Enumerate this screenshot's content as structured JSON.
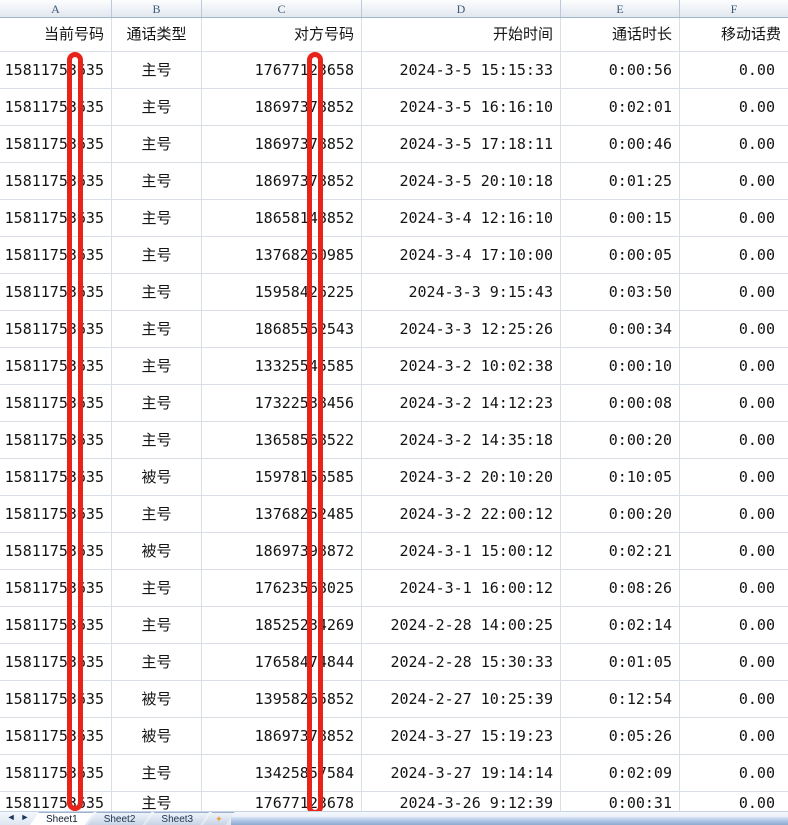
{
  "columns": {
    "letters": [
      "A",
      "B",
      "C",
      "D",
      "E",
      "F"
    ],
    "titles": [
      "当前号码",
      "通话类型",
      "对方号码",
      "开始时间",
      "通话时长",
      "移动话费"
    ]
  },
  "rows": [
    {
      "current_number": "15811753635",
      "call_type": "主号",
      "other_number": "17677123658",
      "start_time": "2024-3-5 15:15:33",
      "duration": "0:00:56",
      "fee": "0.00"
    },
    {
      "current_number": "15811753635",
      "call_type": "主号",
      "other_number": "18697378852",
      "start_time": "2024-3-5 16:16:10",
      "duration": "0:02:01",
      "fee": "0.00"
    },
    {
      "current_number": "15811753635",
      "call_type": "主号",
      "other_number": "18697378852",
      "start_time": "2024-3-5 17:18:11",
      "duration": "0:00:46",
      "fee": "0.00"
    },
    {
      "current_number": "15811753635",
      "call_type": "主号",
      "other_number": "18697378852",
      "start_time": "2024-3-5 20:10:18",
      "duration": "0:01:25",
      "fee": "0.00"
    },
    {
      "current_number": "15811753635",
      "call_type": "主号",
      "other_number": "18658148852",
      "start_time": "2024-3-4 12:16:10",
      "duration": "0:00:15",
      "fee": "0.00"
    },
    {
      "current_number": "15811753635",
      "call_type": "主号",
      "other_number": "13768260985",
      "start_time": "2024-3-4 17:10:00",
      "duration": "0:00:05",
      "fee": "0.00"
    },
    {
      "current_number": "15811753635",
      "call_type": "主号",
      "other_number": "15958426225",
      "start_time": "2024-3-3 9:15:43",
      "duration": "0:03:50",
      "fee": "0.00"
    },
    {
      "current_number": "15811753635",
      "call_type": "主号",
      "other_number": "18685562543",
      "start_time": "2024-3-3 12:25:26",
      "duration": "0:00:34",
      "fee": "0.00"
    },
    {
      "current_number": "15811753635",
      "call_type": "主号",
      "other_number": "13325545585",
      "start_time": "2024-3-2 10:02:38",
      "duration": "0:00:10",
      "fee": "0.00"
    },
    {
      "current_number": "15811753635",
      "call_type": "主号",
      "other_number": "17322538456",
      "start_time": "2024-3-2 14:12:23",
      "duration": "0:00:08",
      "fee": "0.00"
    },
    {
      "current_number": "15811753635",
      "call_type": "主号",
      "other_number": "13658568522",
      "start_time": "2024-3-2 14:35:18",
      "duration": "0:00:20",
      "fee": "0.00"
    },
    {
      "current_number": "15811753635",
      "call_type": "被号",
      "other_number": "15978156585",
      "start_time": "2024-3-2 20:10:20",
      "duration": "0:10:05",
      "fee": "0.00"
    },
    {
      "current_number": "15811753635",
      "call_type": "主号",
      "other_number": "13768252485",
      "start_time": "2024-3-2 22:00:12",
      "duration": "0:00:20",
      "fee": "0.00"
    },
    {
      "current_number": "15811753635",
      "call_type": "被号",
      "other_number": "18697398872",
      "start_time": "2024-3-1 15:00:12",
      "duration": "0:02:21",
      "fee": "0.00"
    },
    {
      "current_number": "15811753635",
      "call_type": "主号",
      "other_number": "17623568025",
      "start_time": "2024-3-1 16:00:12",
      "duration": "0:08:26",
      "fee": "0.00"
    },
    {
      "current_number": "15811753635",
      "call_type": "主号",
      "other_number": "18525234269",
      "start_time": "2024-2-28 14:00:25",
      "duration": "0:02:14",
      "fee": "0.00"
    },
    {
      "current_number": "15811753635",
      "call_type": "主号",
      "other_number": "17658474844",
      "start_time": "2024-2-28 15:30:33",
      "duration": "0:01:05",
      "fee": "0.00"
    },
    {
      "current_number": "15811753635",
      "call_type": "被号",
      "other_number": "13958265852",
      "start_time": "2024-2-27 10:25:39",
      "duration": "0:12:54",
      "fee": "0.00"
    },
    {
      "current_number": "15811753635",
      "call_type": "被号",
      "other_number": "18697378852",
      "start_time": "2024-3-27 15:19:23",
      "duration": "0:05:26",
      "fee": "0.00"
    },
    {
      "current_number": "15811753635",
      "call_type": "主号",
      "other_number": "13425857584",
      "start_time": "2024-3-27 19:14:14",
      "duration": "0:02:09",
      "fee": "0.00"
    },
    {
      "current_number": "15811753635",
      "call_type": "主号",
      "other_number": "17677123678",
      "start_time": "2024-3-26 9:12:39",
      "duration": "0:00:31",
      "fee": "0.00"
    }
  ],
  "redaction": {
    "color": "#e8231a"
  },
  "tab_bar": {
    "nav_first": "◄",
    "nav_last": "►",
    "tabs": [
      "Sheet1",
      "Sheet2",
      "Sheet3"
    ],
    "active": "Sheet1",
    "insert_icon": "✦"
  }
}
